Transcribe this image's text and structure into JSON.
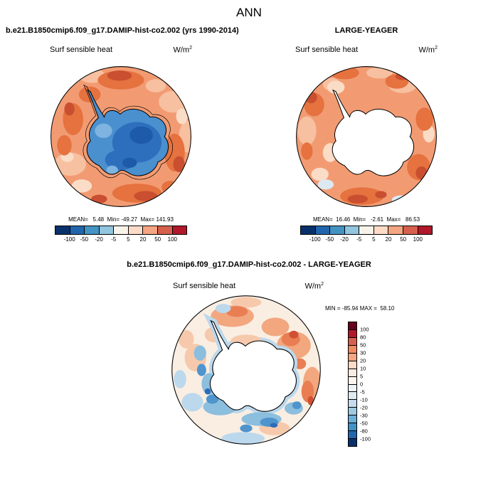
{
  "title": "ANN",
  "left_panel": {
    "header": "b.e21.B1850cmip6.f09_g17.DAMIP-hist-co2.002 (yrs 1990-2014)",
    "field": "Surf sensible heat",
    "units_base": "W/m",
    "units_exp": "2",
    "stats": "MEAN=   5.48  Min= -49.27  Max= 141.93"
  },
  "right_panel": {
    "header": "LARGE-YEAGER",
    "field": "Surf sensible heat",
    "units_base": "W/m",
    "units_exp": "2",
    "stats": "MEAN=  16.46  Min=   -2.61  Max=   86.53"
  },
  "diff_panel": {
    "header": "b.e21.B1850cmip6.f09_g17.DAMIP-hist-co2.002 - LARGE-YEAGER",
    "field": "Surf sensible heat",
    "units_base": "W/m",
    "units_exp": "2",
    "stats": "MIN = -85.94 MAX =  58.10"
  },
  "colorbars": {
    "horizontal": {
      "tick_labels": [
        "-100",
        "-50",
        "-20",
        "-5",
        "5",
        "20",
        "50",
        "100"
      ],
      "colors": [
        "#08306b",
        "#2166ac",
        "#4393c3",
        "#92c5de",
        "#f7f3ea",
        "#fddbc7",
        "#f4a582",
        "#d6604d",
        "#b2182b"
      ]
    },
    "vertical": {
      "tick_labels": [
        "100",
        "80",
        "50",
        "30",
        "20",
        "10",
        "5",
        "0",
        "-5",
        "-10",
        "-20",
        "-30",
        "-50",
        "-80",
        "-100"
      ],
      "colors": [
        "#67001f",
        "#b2182b",
        "#d6604d",
        "#ef8a62",
        "#f4a582",
        "#fddbc7",
        "#fcebe0",
        "#fdf6ee",
        "#eef3f8",
        "#deebf2",
        "#c6dbef",
        "#9ecae1",
        "#6baed6",
        "#4292c6",
        "#2166ac",
        "#08306b"
      ]
    }
  },
  "chart_data": [
    {
      "type": "heatmap",
      "subtype": "south-polar-stereographic-map",
      "title": "b.e21.B1850cmip6.f09_g17.DAMIP-hist-co2.002 (yrs 1990-2014)",
      "variable": "Surf sensible heat",
      "units": "W/m^2",
      "season": "ANN",
      "stats": {
        "mean": 5.48,
        "min": -49.27,
        "max": 141.93
      },
      "contour_levels": [
        -100,
        -50,
        -20,
        -5,
        5,
        20,
        50,
        100
      ],
      "palette_low_to_high": [
        "#08306b",
        "#2166ac",
        "#4393c3",
        "#92c5de",
        "#f7f3ea",
        "#fddbc7",
        "#f4a582",
        "#d6604d",
        "#b2182b"
      ],
      "legend_position": "bottom"
    },
    {
      "type": "heatmap",
      "subtype": "south-polar-stereographic-map",
      "title": "LARGE-YEAGER",
      "variable": "Surf sensible heat",
      "units": "W/m^2",
      "season": "ANN",
      "stats": {
        "mean": 16.46,
        "min": -2.61,
        "max": 86.53
      },
      "contour_levels": [
        -100,
        -50,
        -20,
        -5,
        5,
        20,
        50,
        100
      ],
      "palette_low_to_high": [
        "#08306b",
        "#2166ac",
        "#4393c3",
        "#92c5de",
        "#f7f3ea",
        "#fddbc7",
        "#f4a582",
        "#d6604d",
        "#b2182b"
      ],
      "legend_position": "bottom"
    },
    {
      "type": "heatmap",
      "subtype": "south-polar-stereographic-map",
      "title": "b.e21.B1850cmip6.f09_g17.DAMIP-hist-co2.002 - LARGE-YEAGER",
      "variable": "Surf sensible heat",
      "units": "W/m^2",
      "season": "ANN",
      "stats": {
        "min": -85.94,
        "max": 58.1
      },
      "contour_levels": [
        -100,
        -80,
        -50,
        -30,
        -20,
        -10,
        -5,
        0,
        5,
        10,
        20,
        30,
        50,
        80,
        100
      ],
      "palette_low_to_high": [
        "#08306b",
        "#2166ac",
        "#4292c6",
        "#6baed6",
        "#9ecae1",
        "#c6dbef",
        "#deebf2",
        "#eef3f8",
        "#fdf6ee",
        "#fcebe0",
        "#fddbc7",
        "#f4a582",
        "#ef8a62",
        "#d6604d",
        "#b2182b",
        "#67001f"
      ],
      "legend_position": "right"
    }
  ]
}
